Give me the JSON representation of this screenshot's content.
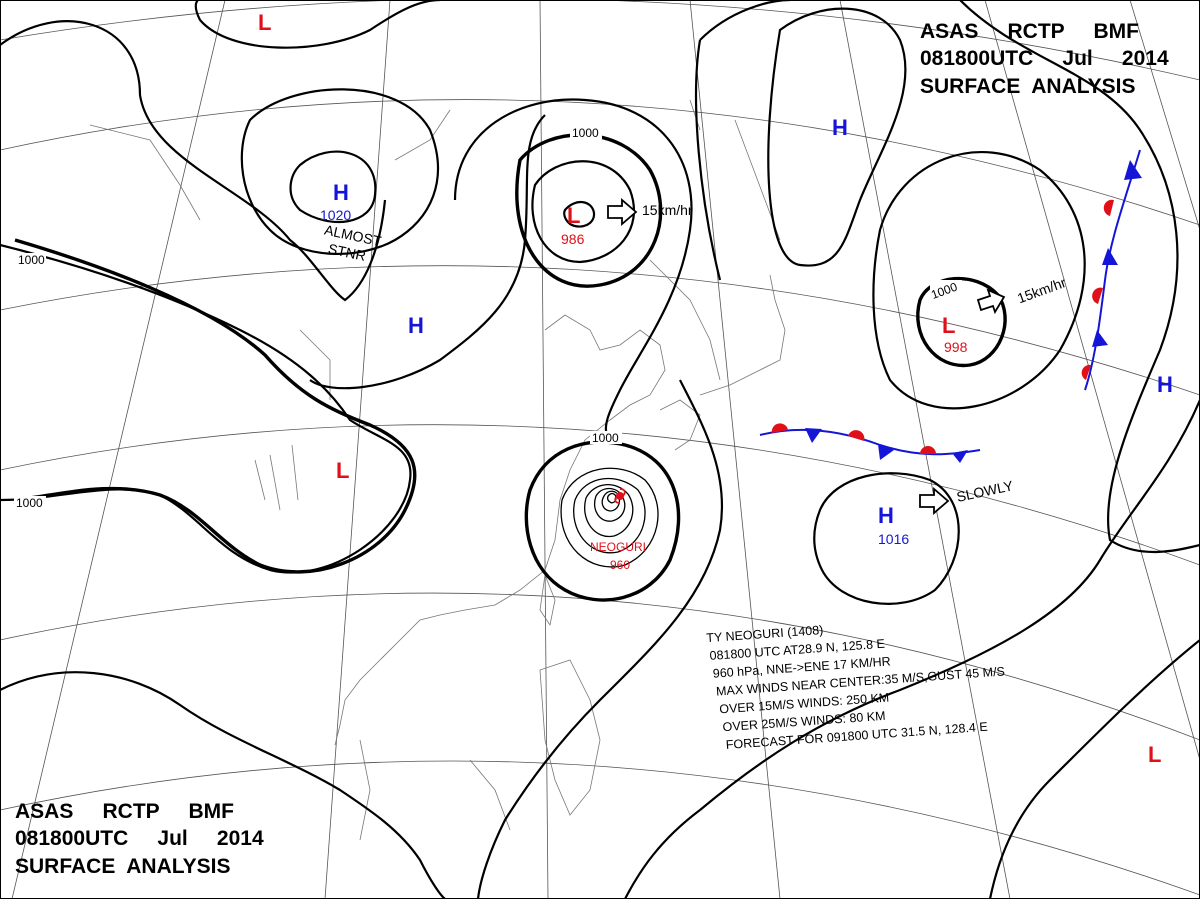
{
  "header": {
    "top_right": {
      "line1": "ASAS     RCTP     BMF",
      "line2": "081800UTC     Jul     2014",
      "line3": "SURFACE  ANALYSIS"
    },
    "bottom_left": {
      "line1": "ASAS     RCTP     BMF",
      "line2": "081800UTC     Jul     2014",
      "line3": "SURFACE  ANALYSIS"
    }
  },
  "systems": [
    {
      "type": "L",
      "label": "L",
      "pressure": ""
    },
    {
      "type": "H",
      "label": "H",
      "pressure": "1020"
    },
    {
      "type": "H",
      "label": "H",
      "pressure": ""
    },
    {
      "type": "L",
      "label": "L",
      "pressure": "986"
    },
    {
      "type": "H",
      "label": "H",
      "pressure": ""
    },
    {
      "type": "L",
      "label": "L",
      "pressure": "998"
    },
    {
      "type": "H",
      "label": "H",
      "pressure": ""
    },
    {
      "type": "L",
      "label": "L",
      "pressure": ""
    },
    {
      "type": "H",
      "label": "H",
      "pressure": "1016"
    },
    {
      "type": "L",
      "label": "L",
      "pressure": ""
    }
  ],
  "motions": {
    "low_north": "15km/hr",
    "low_east": "15km/hr",
    "high_south": "SLOWLY"
  },
  "stationary_note": {
    "line1": "ALMOST",
    "line2": "STNR"
  },
  "isobar_labels": {
    "west_top": "1000",
    "west_bottom": "1000",
    "low_north": "1000",
    "low_east": "1000",
    "typhoon": "1000"
  },
  "typhoon": {
    "name": "NEOGURI",
    "pressure": "960",
    "info": [
      "TY  NEOGURI  (1408)",
      "081800 UTC  AT28.9 N, 125.8 E",
      "960 hPa, NNE->ENE  17 KM/HR",
      "MAX WINDS NEAR CENTER:35 M/S,GUST 45 M/S",
      "OVER 15M/S WINDS: 250 KM",
      "OVER 25M/S WINDS: 80 KM",
      "FORECAST FOR 091800 UTC 31.5 N, 128.4 E"
    ]
  },
  "colors": {
    "low": "#e0101a",
    "high": "#1515d8",
    "front_warm": "#e0101a",
    "front_cold": "#1515d8"
  }
}
